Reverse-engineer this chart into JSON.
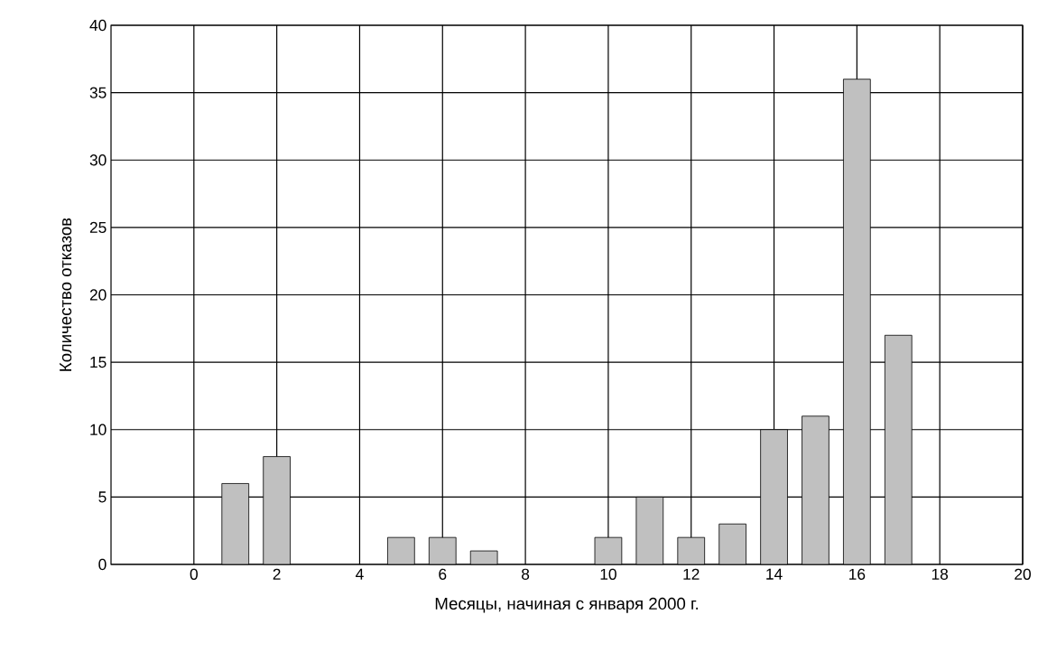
{
  "chart_data": {
    "type": "bar",
    "xlabel": "Месяцы, начиная с января 2000 г.",
    "ylabel": "Количество отказов",
    "x": [
      1,
      2,
      5,
      6,
      7,
      10,
      11,
      12,
      13,
      14,
      15,
      16,
      17
    ],
    "values": [
      6,
      8,
      2,
      2,
      1,
      2,
      5,
      2,
      3,
      10,
      11,
      36,
      17
    ],
    "color": "#c0c0c0",
    "xlim": [
      -2,
      20
    ],
    "ylim": [
      0,
      40
    ],
    "xticks": [
      0,
      2,
      4,
      6,
      8,
      10,
      12,
      14,
      16,
      18,
      20
    ],
    "yticks": [
      0,
      5,
      10,
      15,
      20,
      25,
      30,
      35,
      40
    ],
    "grid": true
  }
}
